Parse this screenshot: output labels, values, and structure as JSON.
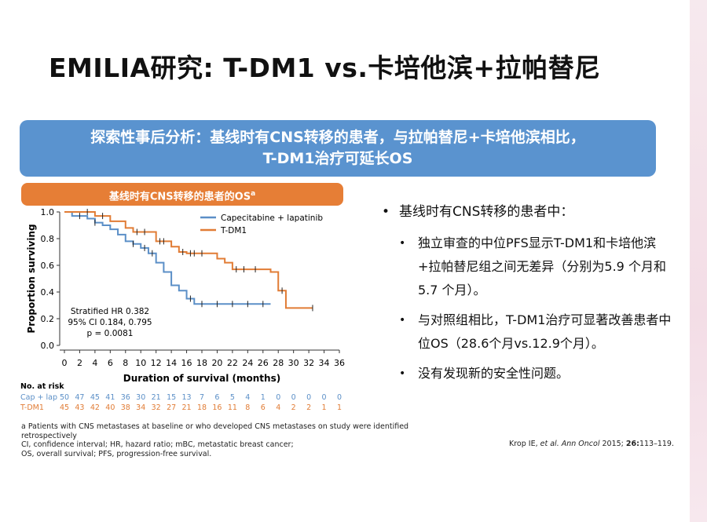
{
  "title": "EMILIA研究: T-DM1 vs.卡培他滨+拉帕替尼",
  "banner": [
    "探索性事后分析：基线时有CNS转移的患者，与拉帕替尼+卡培他滨相比，",
    "T-DM1治疗可延长OS"
  ],
  "chart_header": {
    "text": "基线时有CNS转移的患者的OS",
    "sup": "a"
  },
  "chart_data": {
    "type": "line",
    "step": true,
    "x_label": "Duration of survival (months)",
    "y_label": "Proportion surviving",
    "xlim": [
      0,
      36
    ],
    "xticks": [
      0,
      2,
      4,
      6,
      8,
      10,
      12,
      14,
      16,
      18,
      20,
      22,
      24,
      26,
      28,
      30,
      32,
      34,
      36
    ],
    "ylim": [
      0,
      1
    ],
    "yticks": [
      {
        "value": 0,
        "label": "0.0"
      },
      0.2,
      0.4,
      0.6,
      0.8,
      {
        "value": 1,
        "label": "1.0"
      }
    ],
    "annotations": [
      "Stratified HR 0.382",
      "95%  CI 0.184, 0.795",
      "p =  0.0081"
    ],
    "series": [
      {
        "name": "Capecitabine + lapatinib",
        "color": "#5b8fc7",
        "x": [
          0,
          1,
          3,
          4,
          5,
          6,
          7,
          8,
          9,
          10,
          11,
          12,
          13,
          14,
          15,
          16,
          17,
          27
        ],
        "values": [
          1,
          0.97,
          0.95,
          0.92,
          0.9,
          0.87,
          0.83,
          0.78,
          0.76,
          0.73,
          0.69,
          0.62,
          0.55,
          0.45,
          0.41,
          0.35,
          0.31,
          0.31
        ],
        "censored": [
          2,
          4,
          9,
          10.5,
          11.5,
          16.5,
          18,
          20,
          22,
          24,
          26
        ]
      },
      {
        "name": "T-DM1",
        "color": "#e17c35",
        "x": [
          0,
          4,
          6,
          8,
          9,
          12,
          14,
          15,
          16,
          20,
          21,
          22,
          26,
          27,
          28,
          29,
          32.5
        ],
        "values": [
          1,
          0.97,
          0.93,
          0.88,
          0.85,
          0.78,
          0.74,
          0.7,
          0.69,
          0.65,
          0.62,
          0.57,
          0.57,
          0.55,
          0.41,
          0.28,
          0.28
        ],
        "censored": [
          3,
          5,
          9.5,
          10.5,
          12.5,
          13,
          15.5,
          16.5,
          17,
          18,
          22.5,
          23.5,
          25,
          28.5,
          32.5
        ]
      }
    ],
    "risk_table": {
      "title": "No. at risk",
      "rows": [
        {
          "name": "Cap + lap",
          "values": [
            50,
            47,
            45,
            41,
            36,
            30,
            21,
            15,
            13,
            7,
            6,
            5,
            4,
            1,
            0,
            0,
            0,
            0,
            0
          ]
        },
        {
          "name": "T-DM1",
          "values": [
            45,
            43,
            42,
            40,
            38,
            34,
            32,
            27,
            21,
            18,
            16,
            11,
            8,
            6,
            4,
            2,
            2,
            1,
            1
          ]
        }
      ]
    }
  },
  "bullets": {
    "main": "基线时有CNS转移的患者中：",
    "items": [
      "独立审查的中位PFS显示T-DM1和卡培他滨+拉帕替尼组之间无差异（分别为5.9 个月和5.7 个月）。",
      "与对照组相比，T-DM1治疗可显著改善患者中位OS（28.6个月vs.12.9个月）。",
      "没有发现新的安全性问题。"
    ]
  },
  "footnotes": [
    "a Patients with CNS metastases at baseline or who developed CNS metastases on study were identified retrospectively",
    "CI, confidence interval; HR, hazard ratio; mBC, metastatic breast cancer;",
    "OS, overall survival; PFS, progression-free survival."
  ],
  "citation": [
    "Krop IE, ",
    "et al.",
    "Ann Oncol",
    " 2015; ",
    "26:",
    "113–119."
  ]
}
